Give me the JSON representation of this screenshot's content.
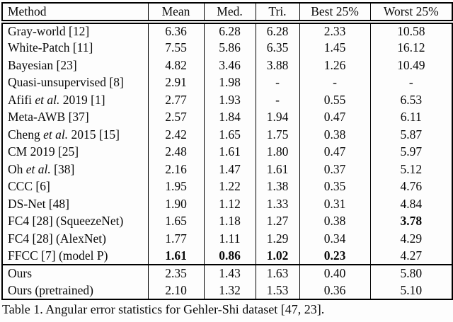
{
  "page": {
    "background": "#fdfdfd",
    "text_color": "#0a0a0a",
    "border_color": "#000000"
  },
  "table": {
    "columns": [
      "Method",
      "Mean",
      "Med.",
      "Tri.",
      "Best 25%",
      "Worst 25%"
    ],
    "rows": [
      {
        "method": [
          {
            "text": "Gray-world [12]",
            "italic": false
          }
        ],
        "values": [
          "6.36",
          "6.28",
          "6.28",
          "2.33",
          "10.58"
        ],
        "bold": [
          false,
          false,
          false,
          false,
          false
        ],
        "rule_above": false
      },
      {
        "method": [
          {
            "text": "White-Patch [11]",
            "italic": false
          }
        ],
        "values": [
          "7.55",
          "5.86",
          "6.35",
          "1.45",
          "16.12"
        ],
        "bold": [
          false,
          false,
          false,
          false,
          false
        ],
        "rule_above": false
      },
      {
        "method": [
          {
            "text": "Bayesian [23]",
            "italic": false
          }
        ],
        "values": [
          "4.82",
          "3.46",
          "3.88",
          "1.26",
          "10.49"
        ],
        "bold": [
          false,
          false,
          false,
          false,
          false
        ],
        "rule_above": false
      },
      {
        "method": [
          {
            "text": "Quasi-unsupervised [8]",
            "italic": false
          }
        ],
        "values": [
          "2.91",
          "1.98",
          "-",
          "-",
          "-"
        ],
        "bold": [
          false,
          false,
          false,
          false,
          false
        ],
        "rule_above": false
      },
      {
        "method": [
          {
            "text": "Afifi ",
            "italic": false
          },
          {
            "text": "et al.",
            "italic": true
          },
          {
            "text": " 2019 [1]",
            "italic": false
          }
        ],
        "values": [
          "2.77",
          "1.93",
          "-",
          "0.55",
          "6.53"
        ],
        "bold": [
          false,
          false,
          false,
          false,
          false
        ],
        "rule_above": false
      },
      {
        "method": [
          {
            "text": "Meta-AWB [37]",
            "italic": false
          }
        ],
        "values": [
          "2.57",
          "1.84",
          "1.94",
          "0.47",
          "6.11"
        ],
        "bold": [
          false,
          false,
          false,
          false,
          false
        ],
        "rule_above": false
      },
      {
        "method": [
          {
            "text": "Cheng ",
            "italic": false
          },
          {
            "text": "et al.",
            "italic": true
          },
          {
            "text": " 2015 [15]",
            "italic": false
          }
        ],
        "values": [
          "2.42",
          "1.65",
          "1.75",
          "0.38",
          "5.87"
        ],
        "bold": [
          false,
          false,
          false,
          false,
          false
        ],
        "rule_above": false
      },
      {
        "method": [
          {
            "text": "CM 2019 [25]",
            "italic": false
          }
        ],
        "values": [
          "2.48",
          "1.61",
          "1.80",
          "0.47",
          "5.97"
        ],
        "bold": [
          false,
          false,
          false,
          false,
          false
        ],
        "rule_above": false
      },
      {
        "method": [
          {
            "text": "Oh ",
            "italic": false
          },
          {
            "text": "et al.",
            "italic": true
          },
          {
            "text": " [38]",
            "italic": false
          }
        ],
        "values": [
          "2.16",
          "1.47",
          "1.61",
          "0.37",
          "5.12"
        ],
        "bold": [
          false,
          false,
          false,
          false,
          false
        ],
        "rule_above": false
      },
      {
        "method": [
          {
            "text": "CCC [6]",
            "italic": false
          }
        ],
        "values": [
          "1.95",
          "1.22",
          "1.38",
          "0.35",
          "4.76"
        ],
        "bold": [
          false,
          false,
          false,
          false,
          false
        ],
        "rule_above": false
      },
      {
        "method": [
          {
            "text": "DS-Net [48]",
            "italic": false
          }
        ],
        "values": [
          "1.90",
          "1.12",
          "1.33",
          "0.31",
          "4.84"
        ],
        "bold": [
          false,
          false,
          false,
          false,
          false
        ],
        "rule_above": false
      },
      {
        "method": [
          {
            "text": "FC4 [28] (SqueezeNet)",
            "italic": false
          }
        ],
        "values": [
          "1.65",
          "1.18",
          "1.27",
          "0.38",
          "3.78"
        ],
        "bold": [
          false,
          false,
          false,
          false,
          true
        ],
        "rule_above": false
      },
      {
        "method": [
          {
            "text": "FC4 [28] (AlexNet)",
            "italic": false
          }
        ],
        "values": [
          "1.77",
          "1.11",
          "1.29",
          "0.34",
          "4.29"
        ],
        "bold": [
          false,
          false,
          false,
          false,
          false
        ],
        "rule_above": false
      },
      {
        "method": [
          {
            "text": "FFCC [7] (model P)",
            "italic": false
          }
        ],
        "values": [
          "1.61",
          "0.86",
          "1.02",
          "0.23",
          "4.27"
        ],
        "bold": [
          true,
          true,
          true,
          true,
          false
        ],
        "rule_above": false
      },
      {
        "method": [
          {
            "text": "Ours",
            "italic": false
          }
        ],
        "values": [
          "2.35",
          "1.43",
          "1.63",
          "0.40",
          "5.80"
        ],
        "bold": [
          false,
          false,
          false,
          false,
          false
        ],
        "rule_above": true
      },
      {
        "method": [
          {
            "text": "Ours (pretrained)",
            "italic": false
          }
        ],
        "values": [
          "2.10",
          "1.32",
          "1.53",
          "0.36",
          "5.10"
        ],
        "bold": [
          false,
          false,
          false,
          false,
          false
        ],
        "rule_above": false
      }
    ],
    "caption": "Table 1. Angular error statistics for Gehler-Shi dataset [47, 23]."
  }
}
